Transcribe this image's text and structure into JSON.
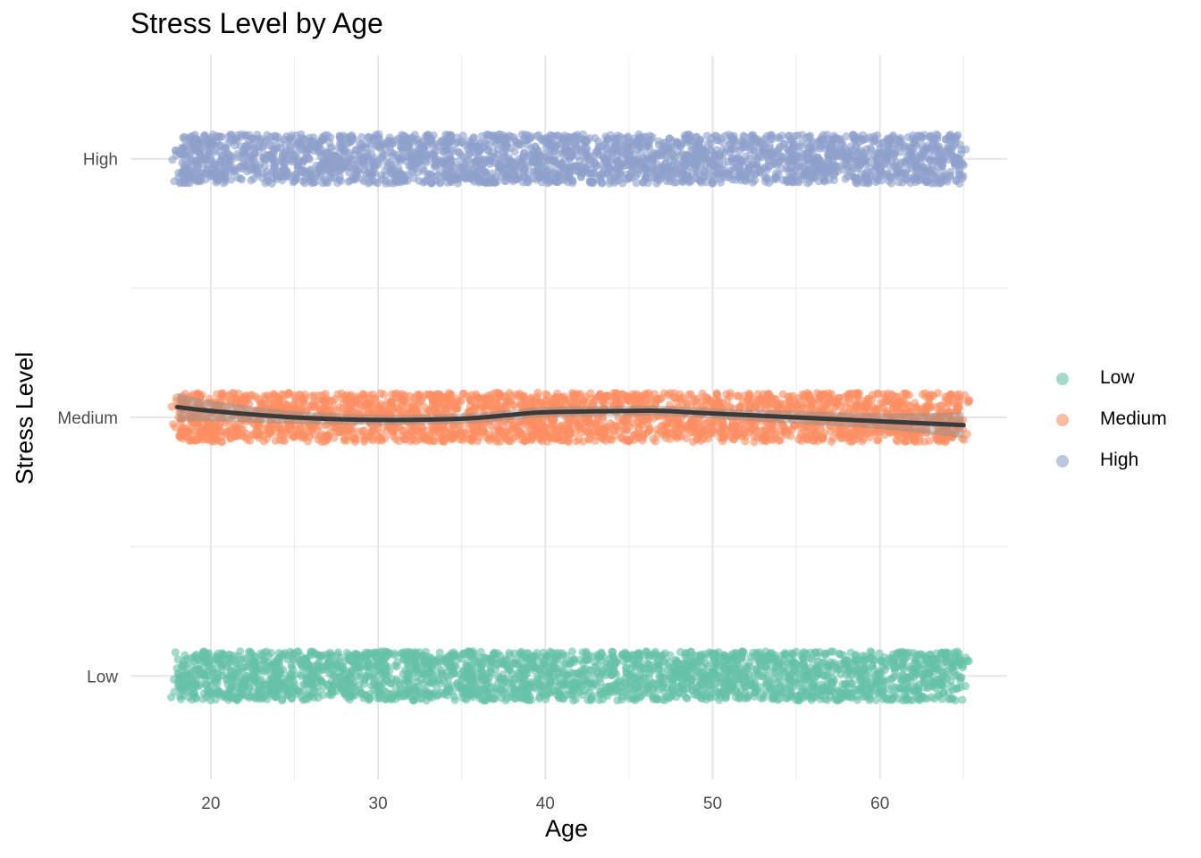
{
  "chart_data": {
    "type": "scatter",
    "title": "Stress Level by Age",
    "xlabel": "Age",
    "ylabel": "Stress Level",
    "xlim": [
      15.2,
      67.6
    ],
    "x_ticks": [
      20,
      30,
      40,
      50,
      60
    ],
    "x_tick_labels": [
      "20",
      "30",
      "40",
      "50",
      "60"
    ],
    "categories": [
      "Low",
      "Medium",
      "High"
    ],
    "jitter_note": "points jittered vertically around each category",
    "grid": true,
    "legend_position": "right",
    "series": [
      {
        "name": "Low",
        "color": "#66c2a5",
        "x_range": [
          18,
          65
        ],
        "y_category": "Low"
      },
      {
        "name": "Medium",
        "color": "#fc8d62",
        "x_range": [
          18,
          65
        ],
        "y_category": "Medium"
      },
      {
        "name": "High",
        "color": "#8da0cb",
        "x_range": [
          18,
          65
        ],
        "y_category": "High"
      }
    ],
    "smooth": {
      "color": "#3a3a3a",
      "band_color": "#8c8c8c",
      "x": [
        18,
        20,
        25,
        30,
        35,
        38,
        40,
        45,
        47,
        50,
        55,
        60,
        65
      ],
      "y": [
        2.04,
        2.025,
        2.0,
        1.99,
        1.995,
        2.01,
        2.02,
        2.025,
        2.025,
        2.015,
        2.0,
        1.985,
        1.97
      ],
      "band": [
        0.055,
        0.04,
        0.025,
        0.02,
        0.02,
        0.02,
        0.02,
        0.02,
        0.02,
        0.02,
        0.025,
        0.03,
        0.05
      ]
    }
  }
}
